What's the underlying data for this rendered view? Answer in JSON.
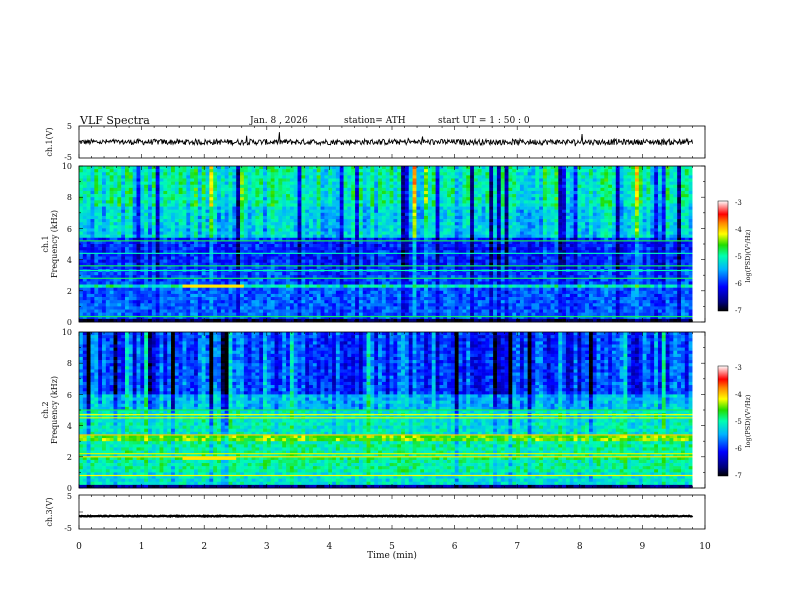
{
  "header": {
    "title": "VLF  Spectra",
    "date": "Jan.  8   , 2026",
    "station": "station= ATH",
    "start": "start  UT  =    1  : 50 : 0"
  },
  "chart_data": [
    {
      "type": "line",
      "name": "ch1-waveform",
      "ylabel": "ch.1(V)",
      "yticks": [
        "5",
        "-5"
      ],
      "ylim": [
        -5,
        5
      ],
      "level": 0.0,
      "noise": 0.9,
      "color": "#000000"
    },
    {
      "type": "heatmap",
      "name": "ch1-spectrogram",
      "ylabel_top": "ch.1",
      "ylabel": "Frequency (kHz)",
      "yticks": [
        "0",
        "2",
        "4",
        "6",
        "8",
        "10"
      ],
      "ylim": [
        0,
        10
      ],
      "colorbar_label": "log(PSD)(V²/Hz)",
      "colorbar_ticks": [
        "-3",
        "-4",
        "-5",
        "-6",
        "-7"
      ],
      "clim": [
        -7,
        -3
      ]
    },
    {
      "type": "heatmap",
      "name": "ch2-spectrogram",
      "ylabel_top": "ch.2",
      "ylabel": "Frequency (kHz)",
      "yticks": [
        "0",
        "2",
        "4",
        "6",
        "8",
        "10"
      ],
      "ylim": [
        0,
        10
      ],
      "colorbar_label": "log(PSD)(V²/Hz)",
      "colorbar_ticks": [
        "-3",
        "-4",
        "-5",
        "-6",
        "-7"
      ],
      "clim": [
        -7,
        -3
      ]
    },
    {
      "type": "line",
      "name": "ch3-waveform",
      "ylabel": "ch.3(V)",
      "yticks": [
        "5",
        "-5"
      ],
      "ylim": [
        -5,
        5
      ],
      "level": -1.2,
      "noise": 0.12,
      "color": "#000000"
    }
  ],
  "xaxis": {
    "label": "Time  (min)",
    "ticks": [
      "0",
      "1",
      "2",
      "3",
      "4",
      "5",
      "6",
      "7",
      "8",
      "9",
      "10"
    ],
    "xlim": [
      0,
      10
    ],
    "data_end": 9.8
  }
}
